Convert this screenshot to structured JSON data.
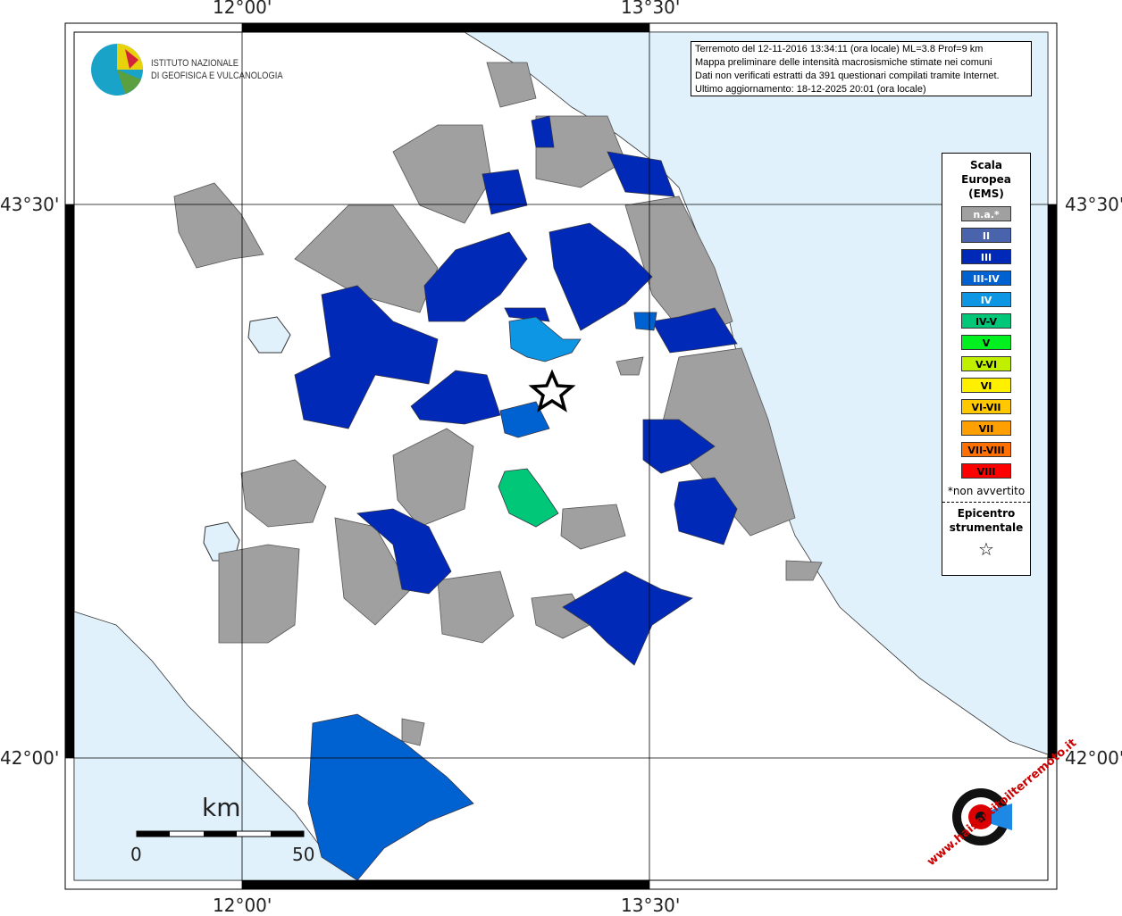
{
  "info": {
    "lines": [
      "Terremoto del 12-11-2016 13:34:11 (ora locale) ML=3.8 Prof=9 km",
      "Mappa preliminare delle intensità macrosismiche stimate nei comuni",
      "Dati non verificati estratti da 391 questionari compilati tramite Internet.",
      "Ultimo aggiornamento: 18-12-2025 20:01 (ora locale)"
    ]
  },
  "logo": {
    "line1": "ISTITUTO NAZIONALE",
    "line2": "DI GEOFISICA E VULCANOLOGIA"
  },
  "axes": {
    "lon": [
      "12°00'",
      "13°30'"
    ],
    "lat": [
      "43°30'",
      "42°00'"
    ]
  },
  "legend": {
    "title": [
      "Scala",
      "Europea",
      "(EMS)"
    ],
    "items": [
      {
        "label": "n.a.*",
        "color": "#a0a0a0",
        "text": "#fff"
      },
      {
        "label": "II",
        "color": "#4a63ad",
        "text": "#fff"
      },
      {
        "label": "III",
        "color": "#0029b8",
        "text": "#fff"
      },
      {
        "label": "III-IV",
        "color": "#0062d0",
        "text": "#fff"
      },
      {
        "label": "IV",
        "color": "#0d96e3",
        "text": "#fff"
      },
      {
        "label": "IV-V",
        "color": "#00c878",
        "text": "#000"
      },
      {
        "label": "V",
        "color": "#00f020",
        "text": "#000"
      },
      {
        "label": "V-VI",
        "color": "#c0f000",
        "text": "#000"
      },
      {
        "label": "VI",
        "color": "#fff000",
        "text": "#000"
      },
      {
        "label": "VI-VII",
        "color": "#ffc800",
        "text": "#000"
      },
      {
        "label": "VII",
        "color": "#ffa000",
        "text": "#000"
      },
      {
        "label": "VII-VIII",
        "color": "#ff7000",
        "text": "#000"
      },
      {
        "label": "VIII",
        "color": "#ff0000",
        "text": "#000"
      }
    ],
    "note": "*non avvertito",
    "epi_title": [
      "Epicentro",
      "strumentale"
    ],
    "epi_symbol": "☆"
  },
  "scale": {
    "unit": "km",
    "min": "0",
    "max": "50"
  },
  "watermark": "www.haisentitoilterremoto.it"
}
